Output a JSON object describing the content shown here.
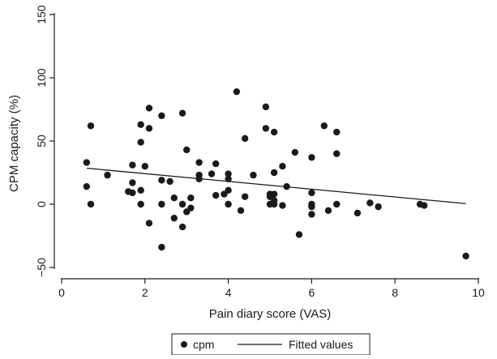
{
  "chart_data": {
    "type": "scatter",
    "title": "",
    "xlabel": "Pain diary score (VAS)",
    "ylabel": "CPM capacity (%)",
    "xlim": [
      0,
      10
    ],
    "ylim": [
      -50,
      150
    ],
    "xticks": [
      "0",
      "2",
      "4",
      "6",
      "8",
      "10"
    ],
    "yticks": [
      "−50",
      "0",
      "50",
      "100",
      "150"
    ],
    "ytick_values": [
      -50,
      0,
      50,
      100,
      150
    ],
    "xtick_values": [
      0,
      2,
      4,
      6,
      8,
      10
    ],
    "grid": false,
    "legend_position": "bottom",
    "series": [
      {
        "name": "cpm",
        "kind": "scatter",
        "color": "#1a1a1a",
        "points": [
          [
            0.6,
            33
          ],
          [
            0.6,
            14
          ],
          [
            0.7,
            62
          ],
          [
            0.7,
            0
          ],
          [
            1.1,
            23
          ],
          [
            1.6,
            10
          ],
          [
            1.7,
            31
          ],
          [
            1.7,
            17
          ],
          [
            1.7,
            9
          ],
          [
            1.9,
            63
          ],
          [
            1.9,
            49
          ],
          [
            1.9,
            11
          ],
          [
            1.9,
            0
          ],
          [
            2.0,
            30
          ],
          [
            2.1,
            76
          ],
          [
            2.1,
            60
          ],
          [
            2.1,
            -15
          ],
          [
            2.4,
            70
          ],
          [
            2.4,
            19
          ],
          [
            2.4,
            0
          ],
          [
            2.4,
            -34
          ],
          [
            2.6,
            18
          ],
          [
            2.7,
            5
          ],
          [
            2.7,
            -11
          ],
          [
            2.9,
            72
          ],
          [
            2.9,
            0
          ],
          [
            2.9,
            -18
          ],
          [
            3.0,
            43
          ],
          [
            3.0,
            -6
          ],
          [
            3.1,
            5
          ],
          [
            3.1,
            -3
          ],
          [
            3.3,
            33
          ],
          [
            3.3,
            23
          ],
          [
            3.3,
            20
          ],
          [
            3.6,
            24
          ],
          [
            3.7,
            32
          ],
          [
            3.7,
            7
          ],
          [
            3.9,
            8
          ],
          [
            4.0,
            24
          ],
          [
            4.0,
            20
          ],
          [
            4.0,
            11
          ],
          [
            4.0,
            0
          ],
          [
            4.2,
            89
          ],
          [
            4.3,
            -5
          ],
          [
            4.4,
            52
          ],
          [
            4.4,
            6
          ],
          [
            4.6,
            23
          ],
          [
            4.9,
            77
          ],
          [
            4.9,
            60
          ],
          [
            5.0,
            8
          ],
          [
            5.0,
            6
          ],
          [
            5.0,
            0
          ],
          [
            5.1,
            57
          ],
          [
            5.1,
            25
          ],
          [
            5.1,
            8
          ],
          [
            5.1,
            3
          ],
          [
            5.1,
            0
          ],
          [
            5.3,
            30
          ],
          [
            5.3,
            -1
          ],
          [
            5.4,
            14
          ],
          [
            5.6,
            41
          ],
          [
            5.7,
            -24
          ],
          [
            6.0,
            37
          ],
          [
            6.0,
            9
          ],
          [
            6.0,
            0
          ],
          [
            6.0,
            -2
          ],
          [
            6.0,
            -8
          ],
          [
            6.3,
            62
          ],
          [
            6.4,
            -5
          ],
          [
            6.6,
            57
          ],
          [
            6.6,
            40
          ],
          [
            6.6,
            0
          ],
          [
            7.1,
            -7
          ],
          [
            7.4,
            1
          ],
          [
            7.6,
            -2
          ],
          [
            8.6,
            0
          ],
          [
            8.7,
            -1
          ],
          [
            9.7,
            -41
          ]
        ]
      },
      {
        "name": "Fitted values",
        "kind": "line",
        "color": "#1a1a1a",
        "points": [
          [
            0.6,
            28.5
          ],
          [
            9.7,
            0.5
          ]
        ]
      }
    ]
  }
}
